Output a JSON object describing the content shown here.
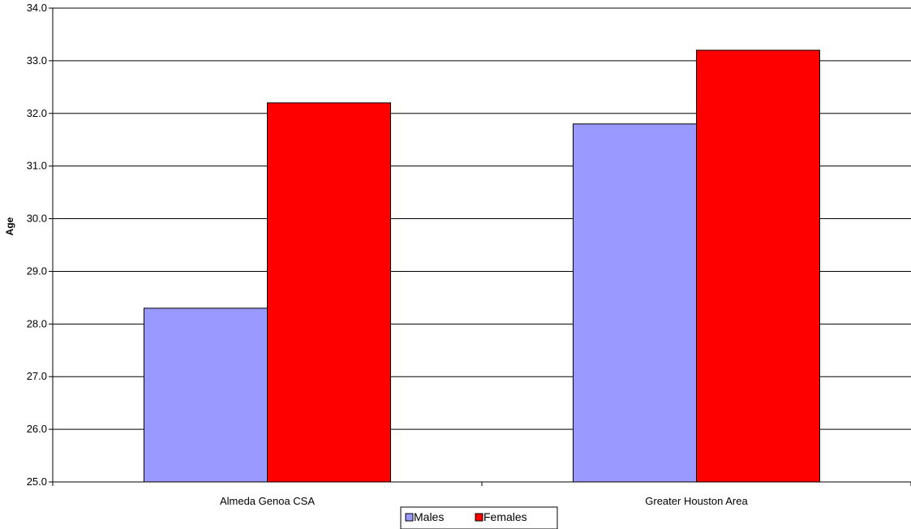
{
  "chart_data": {
    "type": "bar",
    "title": "",
    "xlabel": "",
    "ylabel": "Age",
    "ylim": [
      25.0,
      34.0
    ],
    "ytick_step": 1.0,
    "ytick_decimals": 1,
    "grid": true,
    "legend_position": "bottom",
    "categories": [
      "Almeda Genoa CSA",
      "Greater Houston Area"
    ],
    "series": [
      {
        "name": "Males",
        "values": [
          28.3,
          31.8
        ],
        "color": "#9999ff"
      },
      {
        "name": "Females",
        "values": [
          32.2,
          33.2
        ],
        "color": "#ff0000"
      }
    ]
  }
}
